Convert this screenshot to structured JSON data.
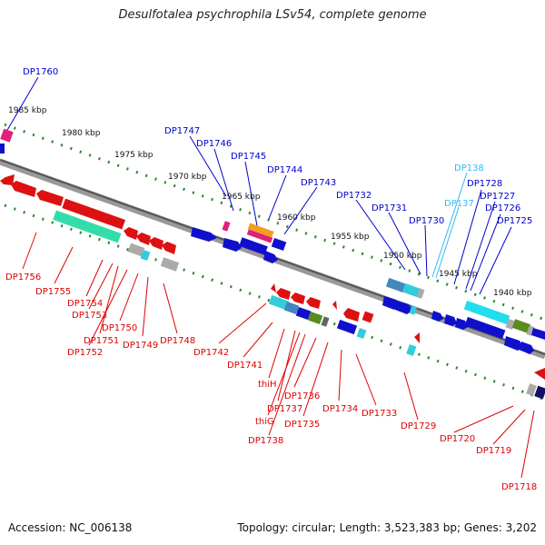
{
  "title": "Desulfotalea psychrophila LSv54, complete genome",
  "footer": {
    "accession": "Accession: NC_006138",
    "summary": "Topology: circular; Length: 3,523,383 bp; Genes: 3,202"
  },
  "colors": {
    "forward_label": "#0000cc",
    "reverse_label": "#dd0000",
    "rna_label": "#33bbee",
    "backbone": "#888888",
    "tick": "#228822"
  },
  "scale_labels": [
    "1985 kbp",
    "1980 kbp",
    "1975 kbp",
    "1970 kbp",
    "1965 kbp",
    "1960 kbp",
    "1955 kbp",
    "1950 kbp",
    "1945 kbp",
    "1940 kbp"
  ],
  "top_labels": [
    "DP1760",
    "DP1747",
    "DP1746",
    "DP1745",
    "DP1744",
    "DP1743",
    "DP1732",
    "DP1731",
    "DP1730",
    "DP1728",
    "DP1727",
    "DP1726",
    "DP1725"
  ],
  "rna_labels": [
    "DP138",
    "DP137"
  ],
  "bottom_labels": [
    "DP1756",
    "DP1755",
    "DP1754",
    "DP1753",
    "DP1751",
    "DP1752",
    "DP1750",
    "DP1749",
    "DP1748",
    "DP1742",
    "DP1741",
    "thiH",
    "DP1737",
    "thiG",
    "DP1738",
    "DP1736",
    "DP1735",
    "DP1734",
    "DP1733",
    "DP1729",
    "DP1720",
    "DP1719",
    "DP1718"
  ]
}
